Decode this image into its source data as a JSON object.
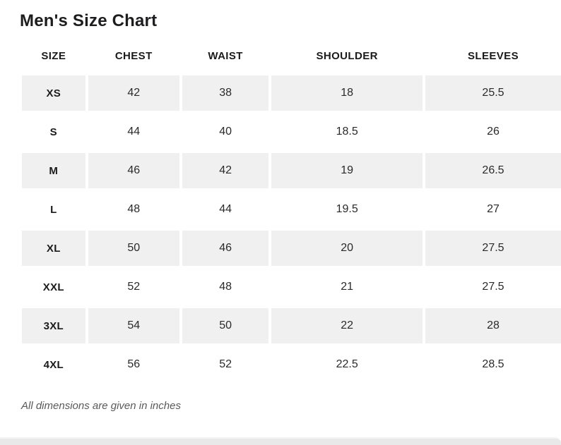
{
  "page": {
    "title": "Men's Size Chart",
    "footnote": "All dimensions are given in inches"
  },
  "table": {
    "columns": [
      "SIZE",
      "CHEST",
      "WAIST",
      "SHOULDER",
      "SLEEVES"
    ],
    "rows": [
      {
        "size": "XS",
        "chest": "42",
        "waist": "38",
        "shoulder": "18",
        "sleeves": "25.5"
      },
      {
        "size": "S",
        "chest": "44",
        "waist": "40",
        "shoulder": "18.5",
        "sleeves": "26"
      },
      {
        "size": "M",
        "chest": "46",
        "waist": "42",
        "shoulder": "19",
        "sleeves": "26.5"
      },
      {
        "size": "L",
        "chest": "48",
        "waist": "44",
        "shoulder": "19.5",
        "sleeves": "27"
      },
      {
        "size": "XL",
        "chest": "50",
        "waist": "46",
        "shoulder": "20",
        "sleeves": "27.5"
      },
      {
        "size": "XXL",
        "chest": "52",
        "waist": "48",
        "shoulder": "21",
        "sleeves": "27.5"
      },
      {
        "size": "3XL",
        "chest": "54",
        "waist": "50",
        "shoulder": "22",
        "sleeves": "28"
      },
      {
        "size": "4XL",
        "chest": "56",
        "waist": "52",
        "shoulder": "22.5",
        "sleeves": "28.5"
      }
    ]
  },
  "colors": {
    "background": "#ffffff",
    "row_shade": "#f0f0f0",
    "title_text": "#1d1d1f",
    "header_text": "#1b1b1b",
    "cell_text": "#2a2a2a",
    "footnote_text": "#595959",
    "bottom_bar": "#e9e9e9"
  }
}
